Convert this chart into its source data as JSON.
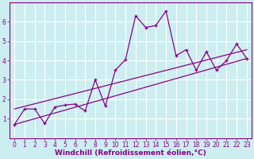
{
  "xlabel": "Windchill (Refroidissement éolien,°C)",
  "bg_color": "#cceef0",
  "line_color": "#880088",
  "grid_color": "#ffffff",
  "x_data": [
    0,
    1,
    2,
    3,
    4,
    5,
    6,
    7,
    8,
    9,
    10,
    11,
    12,
    13,
    14,
    15,
    16,
    17,
    18,
    19,
    20,
    21,
    22,
    23
  ],
  "y_scatter": [
    0.7,
    1.5,
    1.5,
    0.75,
    1.6,
    1.7,
    1.75,
    1.4,
    3.0,
    1.65,
    3.5,
    4.05,
    6.3,
    5.7,
    5.8,
    6.55,
    4.25,
    4.55,
    3.5,
    4.45,
    3.5,
    4.0,
    4.85,
    4.1
  ],
  "ylim": [
    0,
    7
  ],
  "xlim": [
    -0.5,
    23.5
  ],
  "yticks": [
    1,
    2,
    3,
    4,
    5,
    6
  ],
  "xticks": [
    0,
    1,
    2,
    3,
    4,
    5,
    6,
    7,
    8,
    9,
    10,
    11,
    12,
    13,
    14,
    15,
    16,
    17,
    18,
    19,
    20,
    21,
    22,
    23
  ],
  "tick_fontsize": 5.5,
  "xlabel_fontsize": 6.5,
  "line1_start": 0.7,
  "line1_end": 4.1,
  "line2_start": 1.5,
  "line2_end": 4.55
}
